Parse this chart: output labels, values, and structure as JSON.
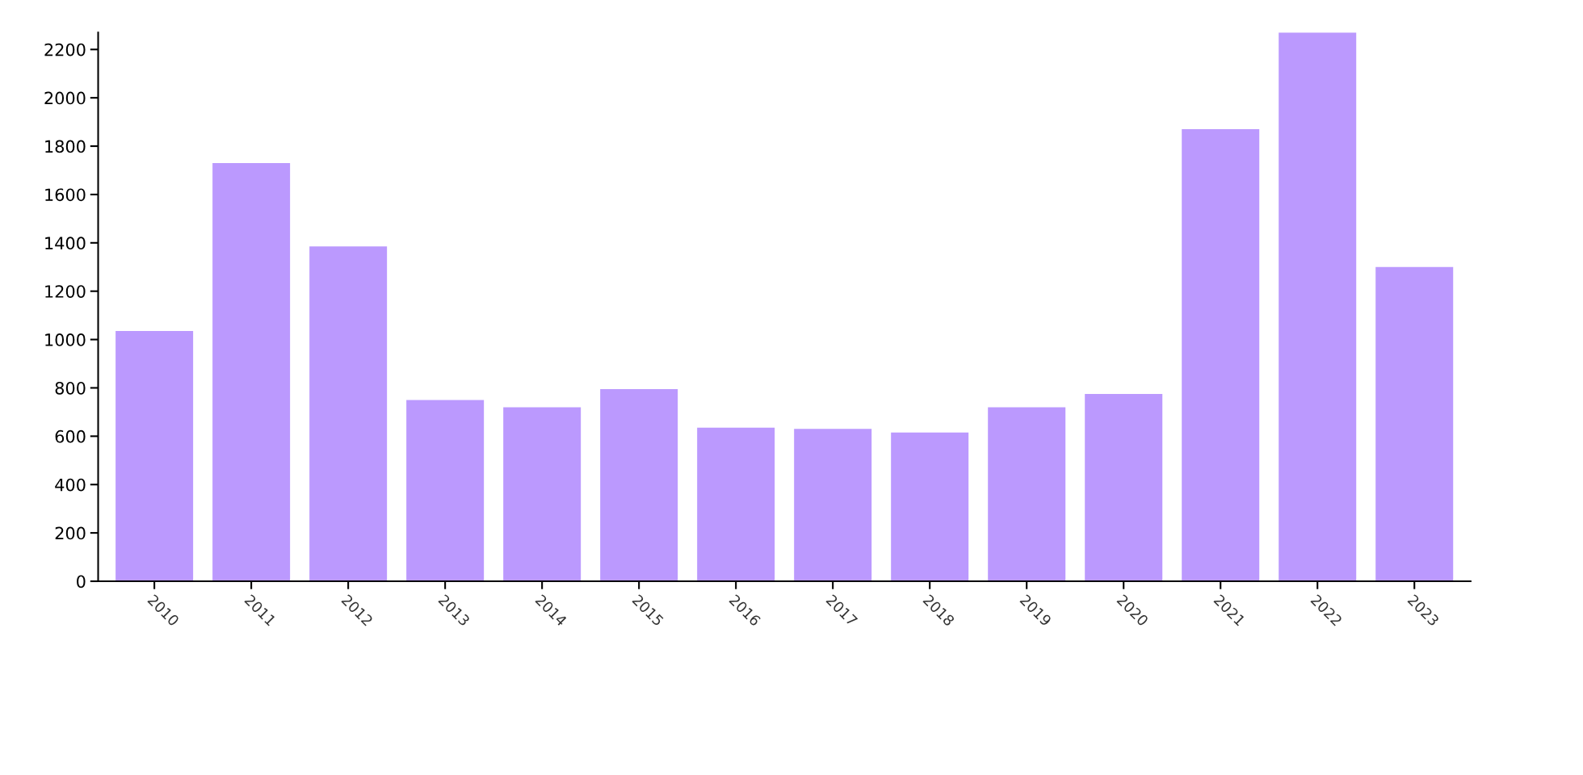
{
  "chart_data": {
    "type": "bar",
    "categories": [
      "2010",
      "2011",
      "2012",
      "2013",
      "2014",
      "2015",
      "2016",
      "2017",
      "2018",
      "2019",
      "2020",
      "2021",
      "2022",
      "2023"
    ],
    "values": [
      1035,
      1730,
      1385,
      750,
      720,
      795,
      635,
      630,
      615,
      720,
      775,
      1870,
      2270,
      1300
    ],
    "color": "#bb99fe",
    "ylim": [
      0,
      2270
    ],
    "yticks": [
      0,
      200,
      400,
      600,
      800,
      1000,
      1200,
      1400,
      1600,
      1800,
      2000,
      2200
    ],
    "grid": false,
    "legend": false
  }
}
